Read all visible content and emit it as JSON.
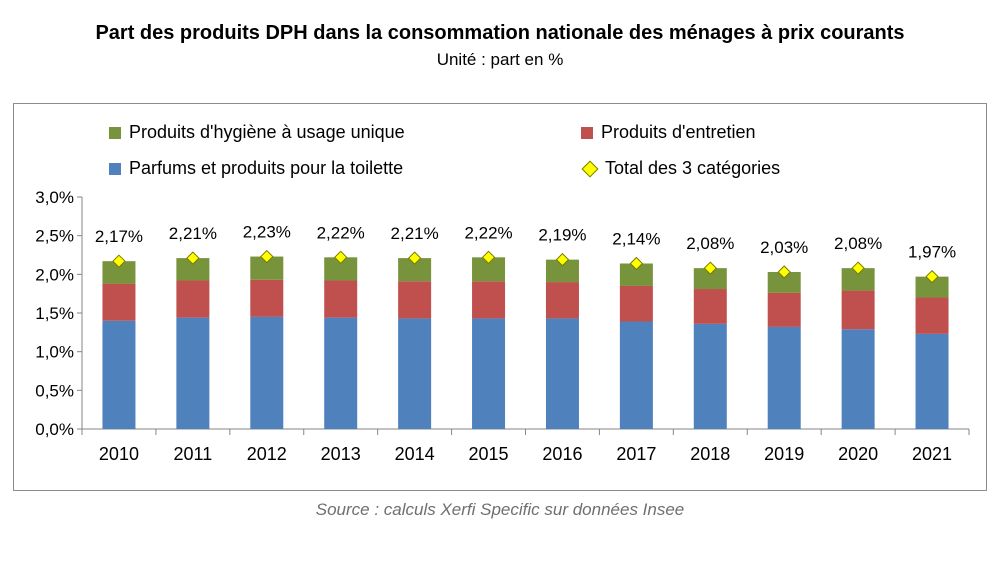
{
  "title": "Part des produits DPH dans la consommation nationale des ménages à prix courants",
  "subtitle": "Unité : part en %",
  "source": "Source : calculs Xerfi Specific sur données Insee",
  "colors": {
    "hygiene": "#77933c",
    "entretien": "#c0504d",
    "parfums": "#4f81bd",
    "total": "#ffff00"
  },
  "legend": {
    "hygiene": "Produits d'hygiène à usage unique",
    "entretien": "Produits d'entretien",
    "parfums": "Parfums et produits pour la toilette",
    "total": "Total des 3 catégories"
  },
  "chart_data": {
    "type": "bar",
    "stacked": true,
    "categories": [
      "2010",
      "2011",
      "2012",
      "2013",
      "2014",
      "2015",
      "2016",
      "2017",
      "2018",
      "2019",
      "2020",
      "2021"
    ],
    "series": [
      {
        "name": "Parfums et produits pour la toilette",
        "key": "parfums",
        "values": [
          1.4,
          1.44,
          1.45,
          1.44,
          1.43,
          1.43,
          1.43,
          1.39,
          1.36,
          1.32,
          1.29,
          1.23
        ]
      },
      {
        "name": "Produits d'entretien",
        "key": "entretien",
        "values": [
          0.48,
          0.48,
          0.48,
          0.48,
          0.48,
          0.48,
          0.47,
          0.46,
          0.45,
          0.44,
          0.5,
          0.47
        ]
      },
      {
        "name": "Produits d'hygiène à usage unique",
        "key": "hygiene",
        "values": [
          0.29,
          0.29,
          0.3,
          0.3,
          0.3,
          0.31,
          0.29,
          0.29,
          0.27,
          0.27,
          0.29,
          0.27
        ]
      }
    ],
    "total": {
      "name": "Total des 3 catégories",
      "values": [
        2.17,
        2.21,
        2.23,
        2.22,
        2.21,
        2.22,
        2.19,
        2.14,
        2.08,
        2.03,
        2.08,
        1.97
      ],
      "labels": [
        "2,17%",
        "2,21%",
        "2,23%",
        "2,22%",
        "2,21%",
        "2,22%",
        "2,19%",
        "2,14%",
        "2,08%",
        "2,03%",
        "2,08%",
        "1,97%"
      ]
    },
    "yticks": [
      0,
      0.5,
      1.0,
      1.5,
      2.0,
      2.5,
      3.0
    ],
    "ytick_labels": [
      "0,0%",
      "0,5%",
      "1,0%",
      "1,5%",
      "2,0%",
      "2,5%",
      "3,0%"
    ],
    "ylim": [
      0,
      3.0
    ],
    "grid": false,
    "legend_position": "top"
  }
}
